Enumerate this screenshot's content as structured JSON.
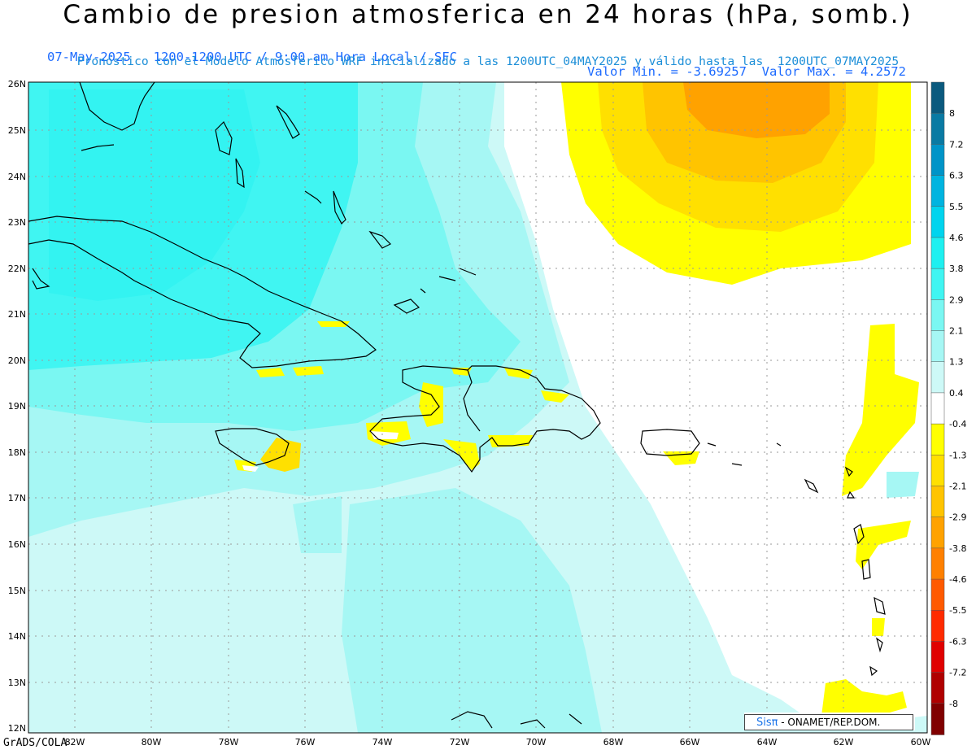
{
  "header": {
    "title": "Cambio de presion atmosferica en 24 horas (hPa, somb.)",
    "subtitle_left": "07-May-2025   1200-1200 UTC / 9:00 am Hora Local / SFC",
    "subtitle_right": "Valor Min. = -3.69257  Valor Max. = 4.2572",
    "subtitle2": "Pronóstico con el Modelo Atmósferico WRF inicializado a las 1200UTC_04MAY2025 y válido hasta las  1200UTC_07MAY2025"
  },
  "map": {
    "lat_labels": [
      "26N",
      "25N",
      "24N",
      "23N",
      "22N",
      "21N",
      "20N",
      "19N",
      "18N",
      "17N",
      "16N",
      "15N",
      "14N",
      "13N",
      "12N"
    ],
    "lon_labels": [
      "82W",
      "80W",
      "78W",
      "76W",
      "74W",
      "72W",
      "70W",
      "68W",
      "66W",
      "64W",
      "62W",
      "60W"
    ],
    "lat_range": [
      12,
      26
    ],
    "lon_range": [
      -82,
      -60
    ],
    "grid": "dotted"
  },
  "colorbar": {
    "labels": [
      "8",
      "7.2",
      "6.3",
      "5.5",
      "4.6",
      "3.8",
      "2.9",
      "2.1",
      "1.3",
      "0.4",
      "-0.4",
      "-1.3",
      "-2.1",
      "-2.9",
      "-3.8",
      "-4.6",
      "-5.5",
      "-6.3",
      "-7.2",
      "-8"
    ],
    "colors": [
      "#0b5a7e",
      "#0a7aa3",
      "#0094c8",
      "#00b4e0",
      "#00d4ee",
      "#1ef0f0",
      "#40f5f2",
      "#7af7f2",
      "#a6f7f4",
      "#cdf9f7",
      "#ffffff",
      "#ffff00",
      "#ffe000",
      "#ffc400",
      "#ffa200",
      "#ff8000",
      "#ff5a00",
      "#ff2a00",
      "#e00000",
      "#b00000",
      "#800000"
    ]
  },
  "brand": {
    "sis": "Sisπ",
    "text": " - ONAMET/REP.DOM."
  },
  "credit": "GrADS/COLA"
}
